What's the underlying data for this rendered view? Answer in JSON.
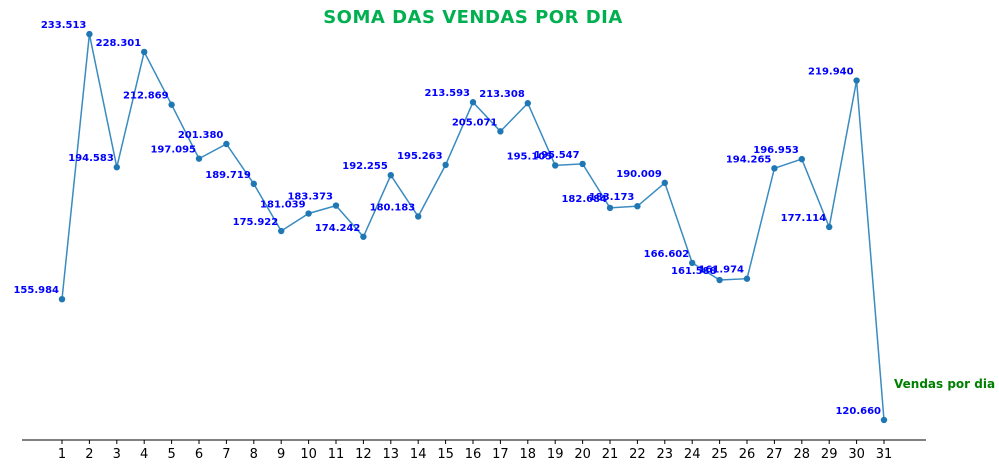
{
  "chart_data": {
    "type": "line",
    "title": "SOMA DAS VENDAS POR DIA",
    "xlabel": "",
    "ylabel": "",
    "categories": [
      "1",
      "2",
      "3",
      "4",
      "5",
      "6",
      "7",
      "8",
      "9",
      "10",
      "11",
      "12",
      "13",
      "14",
      "15",
      "16",
      "17",
      "18",
      "19",
      "20",
      "21",
      "22",
      "23",
      "24",
      "25",
      "26",
      "27",
      "28",
      "29",
      "30",
      "31"
    ],
    "series": [
      {
        "name": "Vendas por dia",
        "values": [
          155984,
          233513,
          194583,
          228301,
          212869,
          197095,
          201380,
          189719,
          175922,
          181039,
          183373,
          174242,
          192255,
          180183,
          195263,
          213593,
          205071,
          213308,
          195105,
          195547,
          182684,
          183173,
          190009,
          166602,
          161588,
          161974,
          194265,
          196953,
          177114,
          219940,
          120660
        ]
      }
    ],
    "data_labels": [
      "155.984",
      "233.513",
      "194.583",
      "228.301",
      "212.869",
      "197.095",
      "201.380",
      "189.719",
      "175.922",
      "181.039",
      "183.373",
      "174.242",
      "192.255",
      "180.183",
      "195.263",
      "213.593",
      "205.071",
      "213.308",
      "195.105",
      "195.547",
      "182.684",
      "183.173",
      "190.009",
      "166.602",
      "161.588",
      "161.974",
      "194.265",
      "196.953",
      "177.114",
      "219.940",
      "120.660"
    ],
    "ylim": [
      114800,
      239400
    ],
    "grid": false,
    "legend_position": "right",
    "colors": {
      "line": "#3a8bc0",
      "marker": "#1f77b4",
      "labels": "#0000ff",
      "title": "#00b050",
      "legend": "#008000"
    }
  }
}
